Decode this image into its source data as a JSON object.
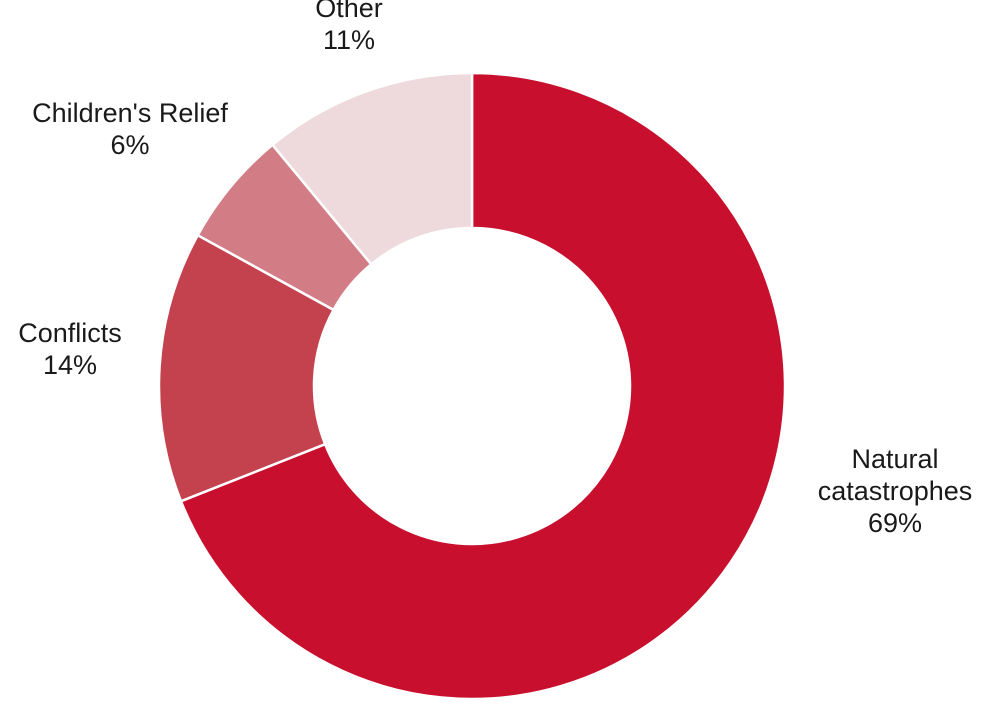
{
  "chart_data": {
    "type": "pie",
    "variant": "donut",
    "title": "",
    "legend": "none",
    "start": "top, clockwise",
    "slices": [
      {
        "label": [
          "Natural",
          "catastrophes"
        ],
        "value": 69,
        "value_label": "69%",
        "color": "#c8102e"
      },
      {
        "label": [
          "Conflicts"
        ],
        "value": 14,
        "value_label": "14%",
        "color": "#c4414e"
      },
      {
        "label": [
          "Children's Relief"
        ],
        "value": 6,
        "value_label": "6%",
        "color": "#d27d86"
      },
      {
        "label": [
          "Other"
        ],
        "value": 11,
        "value_label": "11%",
        "color": "#eed9dd"
      }
    ]
  }
}
